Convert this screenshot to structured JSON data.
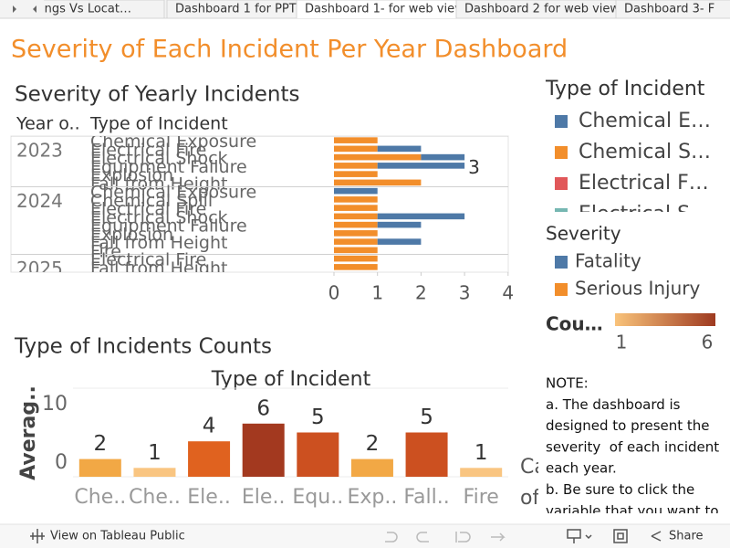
{
  "tabs": [
    "n Findings Vs Locat…",
    "Dashboard 1 for PPT",
    "Dashboard 1- for web view",
    "Dashboard 2 for web view",
    "Dashboard 3- F"
  ],
  "active_tab": 2,
  "title": "Severity of Each Incident Per Year Dashboard",
  "chart_data": [
    {
      "type": "bar",
      "orientation": "horizontal",
      "stacked": true,
      "title": "Severity of Yearly Incidents",
      "row_headers": [
        "Year o..",
        "Type of Incident"
      ],
      "legend_title": "Severity",
      "series": [
        {
          "name": "Fatality",
          "color": "#4e79a7"
        },
        {
          "name": "Serious Injury",
          "color": "#f28e2b"
        }
      ],
      "panes": [
        {
          "year": "2023",
          "categories": [
            "Chemical Exposure",
            "Electrical Fire",
            "Electrical Shock",
            "Equipment Failure",
            "Explosion",
            "Fall from Height"
          ],
          "series": [
            {
              "values": [
                0,
                1,
                1,
                2,
                0,
                0
              ]
            },
            {
              "values": [
                1,
                1,
                2,
                1,
                1,
                2
              ]
            }
          ],
          "labels": [
            null,
            null,
            null,
            3,
            null,
            null
          ]
        },
        {
          "year": "2024",
          "categories": [
            "Chemical Exposure",
            "Chemical Spill",
            "Electrical Fire",
            "Electrical Shock",
            "Equipment Failure",
            "Explosion",
            "Fall from Height",
            "Fire"
          ],
          "series": [
            {
              "values": [
                1,
                0,
                0,
                2,
                1,
                0,
                1,
                0
              ]
            },
            {
              "values": [
                0,
                1,
                1,
                1,
                1,
                1,
                1,
                1
              ]
            }
          ],
          "labels": [
            null,
            null,
            null,
            null,
            null,
            null,
            null,
            null
          ]
        },
        {
          "year": "2025",
          "categories": [
            "Electrical Fire",
            "Fall from Height"
          ],
          "series": [
            {
              "values": [
                0,
                0
              ]
            },
            {
              "values": [
                1,
                1
              ]
            }
          ],
          "labels": [
            null,
            null
          ]
        }
      ],
      "xlim": [
        0,
        4
      ],
      "xticks": [
        0,
        1,
        2,
        3,
        4
      ]
    },
    {
      "type": "bar",
      "title": "Type of Incidents Counts",
      "subtitle": "Type of Incident",
      "ylabel": "Averag..",
      "categories": [
        "Che..",
        "Che..",
        "Ele..",
        "Ele..",
        "Equ..",
        "Exp..",
        "Fall..",
        "Fire"
      ],
      "values": [
        2,
        1,
        4,
        6,
        5,
        2,
        5,
        1
      ],
      "colors": [
        "#f2a845",
        "#f9c581",
        "#e0621f",
        "#a3391f",
        "#cc5020",
        "#f2a845",
        "#cc5020",
        "#f9c581"
      ],
      "ylim": [
        0,
        10
      ],
      "yticks": [
        0,
        10
      ],
      "grid": true,
      "color_legend": {
        "title": "Cou…",
        "min": 1,
        "max": 6,
        "colors": [
          "#f9c37a",
          "#9e3a20"
        ]
      },
      "clipped_text": [
        "Ca",
        "of"
      ]
    }
  ],
  "type_legend": {
    "title": "Type of Incident",
    "items": [
      {
        "name": "Chemical E…",
        "color": "#4e79a7"
      },
      {
        "name": "Chemical S…",
        "color": "#f28e2b"
      },
      {
        "name": "Electrical F…",
        "color": "#e15759"
      },
      {
        "name": "Electrical S…",
        "color": "#76b7b2"
      }
    ]
  },
  "note": [
    "NOTE:",
    "a. The dashboard is",
    "designed to present the",
    "severity  of each incident",
    "each year.",
    "b. Be sure to click the",
    "variable that you want to"
  ],
  "toolbar": {
    "view": "View on Tableau Public",
    "share": "Share"
  }
}
